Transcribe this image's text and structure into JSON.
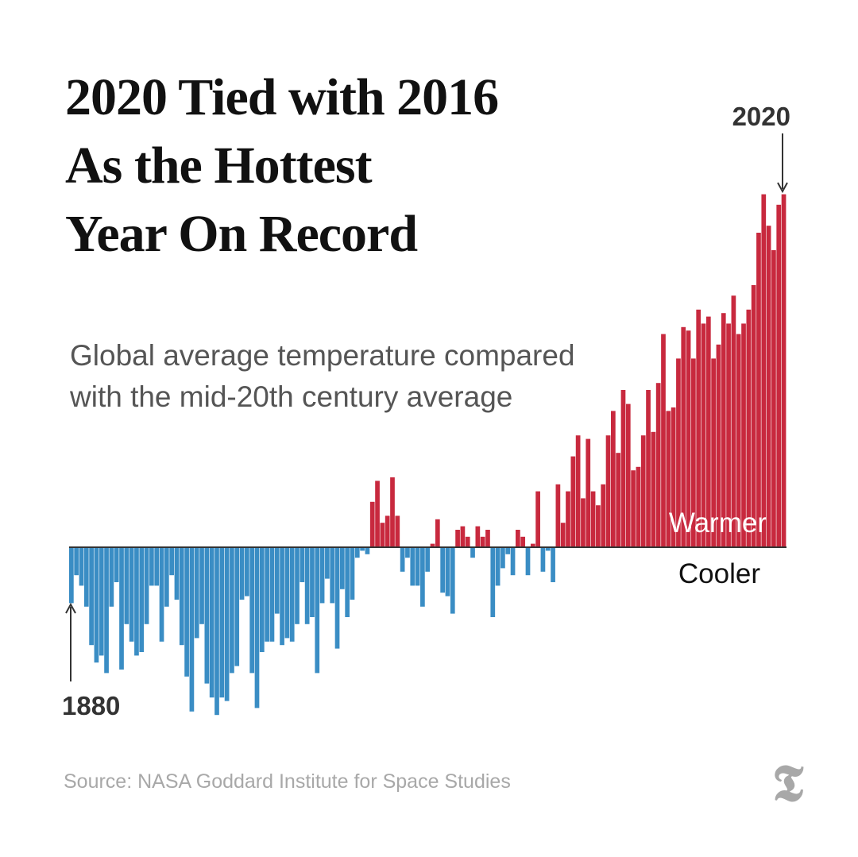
{
  "title_lines": [
    "2020 Tied with 2016",
    "As the Hottest",
    "Year On Record"
  ],
  "subtitle_lines": [
    "Global average temperature compared",
    "with the mid-20th century average"
  ],
  "source": "Source: NASA Goddard Institute for Space Studies",
  "logo": "T",
  "colors": {
    "warm": "#c8293e",
    "cool": "#3a8dc4",
    "text": "#111111",
    "muted": "#a8a8a8"
  },
  "chart_data": {
    "type": "bar",
    "x_start": 1880,
    "x_end": 2020,
    "start_label": "1880",
    "end_label": "2020",
    "warm_label": "Warmer",
    "cool_label": "Cooler",
    "ylim": [
      -0.5,
      1.15
    ],
    "values": [
      -0.16,
      -0.08,
      -0.11,
      -0.17,
      -0.28,
      -0.33,
      -0.31,
      -0.36,
      -0.17,
      -0.1,
      -0.35,
      -0.22,
      -0.27,
      -0.31,
      -0.3,
      -0.22,
      -0.11,
      -0.11,
      -0.27,
      -0.17,
      -0.08,
      -0.15,
      -0.28,
      -0.37,
      -0.47,
      -0.26,
      -0.22,
      -0.39,
      -0.43,
      -0.48,
      -0.43,
      -0.44,
      -0.36,
      -0.34,
      -0.15,
      -0.14,
      -0.36,
      -0.46,
      -0.3,
      -0.27,
      -0.27,
      -0.19,
      -0.28,
      -0.26,
      -0.27,
      -0.22,
      -0.1,
      -0.22,
      -0.2,
      -0.36,
      -0.16,
      -0.09,
      -0.16,
      -0.29,
      -0.12,
      -0.2,
      -0.15,
      -0.03,
      -0.01,
      -0.02,
      0.13,
      0.19,
      0.07,
      0.09,
      0.2,
      0.09,
      -0.07,
      -0.03,
      -0.11,
      -0.11,
      -0.17,
      -0.07,
      0.01,
      0.08,
      -0.13,
      -0.14,
      -0.19,
      0.05,
      0.06,
      0.03,
      -0.03,
      0.06,
      0.03,
      0.05,
      -0.2,
      -0.11,
      -0.06,
      -0.02,
      -0.08,
      0.05,
      0.03,
      -0.08,
      0.01,
      0.16,
      -0.07,
      -0.01,
      -0.1,
      0.18,
      0.07,
      0.16,
      0.26,
      0.32,
      0.14,
      0.31,
      0.16,
      0.12,
      0.18,
      0.32,
      0.39,
      0.27,
      0.45,
      0.41,
      0.22,
      0.23,
      0.32,
      0.45,
      0.33,
      0.47,
      0.61,
      0.39,
      0.4,
      0.54,
      0.63,
      0.62,
      0.54,
      0.68,
      0.64,
      0.66,
      0.54,
      0.58,
      0.67,
      0.64,
      0.72,
      0.61,
      0.64,
      0.68,
      0.75,
      0.9,
      1.01,
      0.92,
      0.85,
      0.98,
      1.01
    ]
  }
}
